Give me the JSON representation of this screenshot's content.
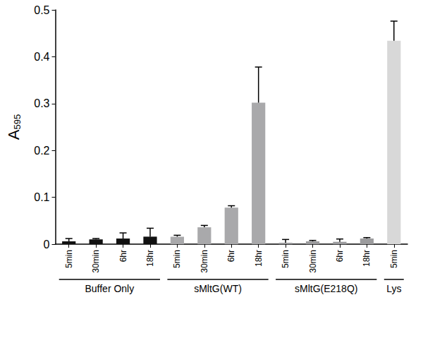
{
  "chart_data": {
    "type": "bar",
    "y_label": "A595",
    "categories": [
      "5min",
      "30min",
      "6hr",
      "18hr",
      "5min",
      "30min",
      "6hr",
      "18hr",
      "5min",
      "30min",
      "6hr",
      "18hr",
      "5min"
    ],
    "values": [
      0.006,
      0.01,
      0.012,
      0.016,
      0.016,
      0.036,
      0.078,
      0.302,
      0.003,
      0.006,
      0.005,
      0.012,
      0.434
    ],
    "errors": [
      0.006,
      0.002,
      0.012,
      0.018,
      0.003,
      0.004,
      0.004,
      0.076,
      0.007,
      0.002,
      0.006,
      0.002,
      0.042
    ],
    "colors": [
      "#111111",
      "#111111",
      "#111111",
      "#111111",
      "#a9a9ab",
      "#a9a9ab",
      "#a9a9ab",
      "#a9a9ab",
      "#9c9c9e",
      "#9c9c9e",
      "#9c9c9e",
      "#9c9c9e",
      "#d8d8d8"
    ],
    "groups": [
      {
        "name": "Buffer Only",
        "size": 4
      },
      {
        "name": "sMltG(WT)",
        "size": 4
      },
      {
        "name": "sMltG(E218Q)",
        "size": 4
      },
      {
        "name": "Lys",
        "size": 1
      }
    ],
    "ylim": [
      0,
      0.5
    ],
    "yticks": [
      0,
      0.1,
      0.2,
      0.3,
      0.4,
      0.5
    ],
    "grid": false
  }
}
